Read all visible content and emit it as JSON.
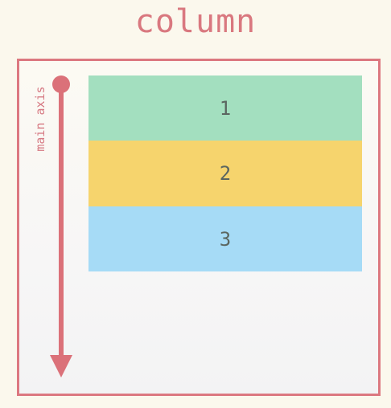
{
  "title": "column",
  "axis": {
    "label": "main axis",
    "color": "#db7179"
  },
  "items": [
    {
      "label": "1",
      "color": "#a3dfbf"
    },
    {
      "label": "2",
      "color": "#f6d46d"
    },
    {
      "label": "3",
      "color": "#a6dbf6"
    }
  ],
  "colors": {
    "title": "#d9787f",
    "container_border": "#dc7880",
    "background": "#fbf8ed"
  }
}
